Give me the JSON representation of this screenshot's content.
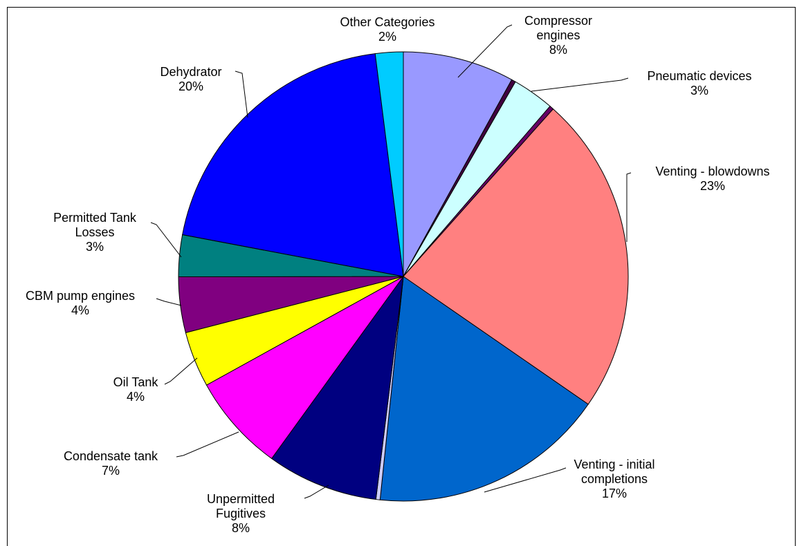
{
  "chart_data": {
    "type": "pie",
    "categories": [
      "Compressor engines",
      null,
      "Pneumatic devices",
      null,
      "Venting - blowdowns",
      "Venting - initial completions",
      null,
      "Unpermitted Fugitives",
      "Condensate tank",
      "Oil Tank",
      "CBM pump engines",
      "Permitted Tank Losses",
      "Dehydrator",
      "Other Categories"
    ],
    "values": [
      8,
      0.3,
      3,
      0.3,
      23,
      17,
      0.3,
      8,
      7,
      4,
      4,
      3,
      20,
      2
    ],
    "value_labels": [
      "8%",
      null,
      "3%",
      null,
      "23%",
      "17%",
      null,
      "8%",
      "7%",
      "4%",
      "4%",
      "3%",
      "20%",
      "2%"
    ],
    "colors": [
      "#9999ff",
      "#400040",
      "#ccffff",
      "#660066",
      "#ff8080",
      "#0066cc",
      "#ccccff",
      "#000080",
      "#ff00ff",
      "#ffff00",
      "#800080",
      "#008080",
      "#0000ff",
      "#00ccff"
    ]
  }
}
